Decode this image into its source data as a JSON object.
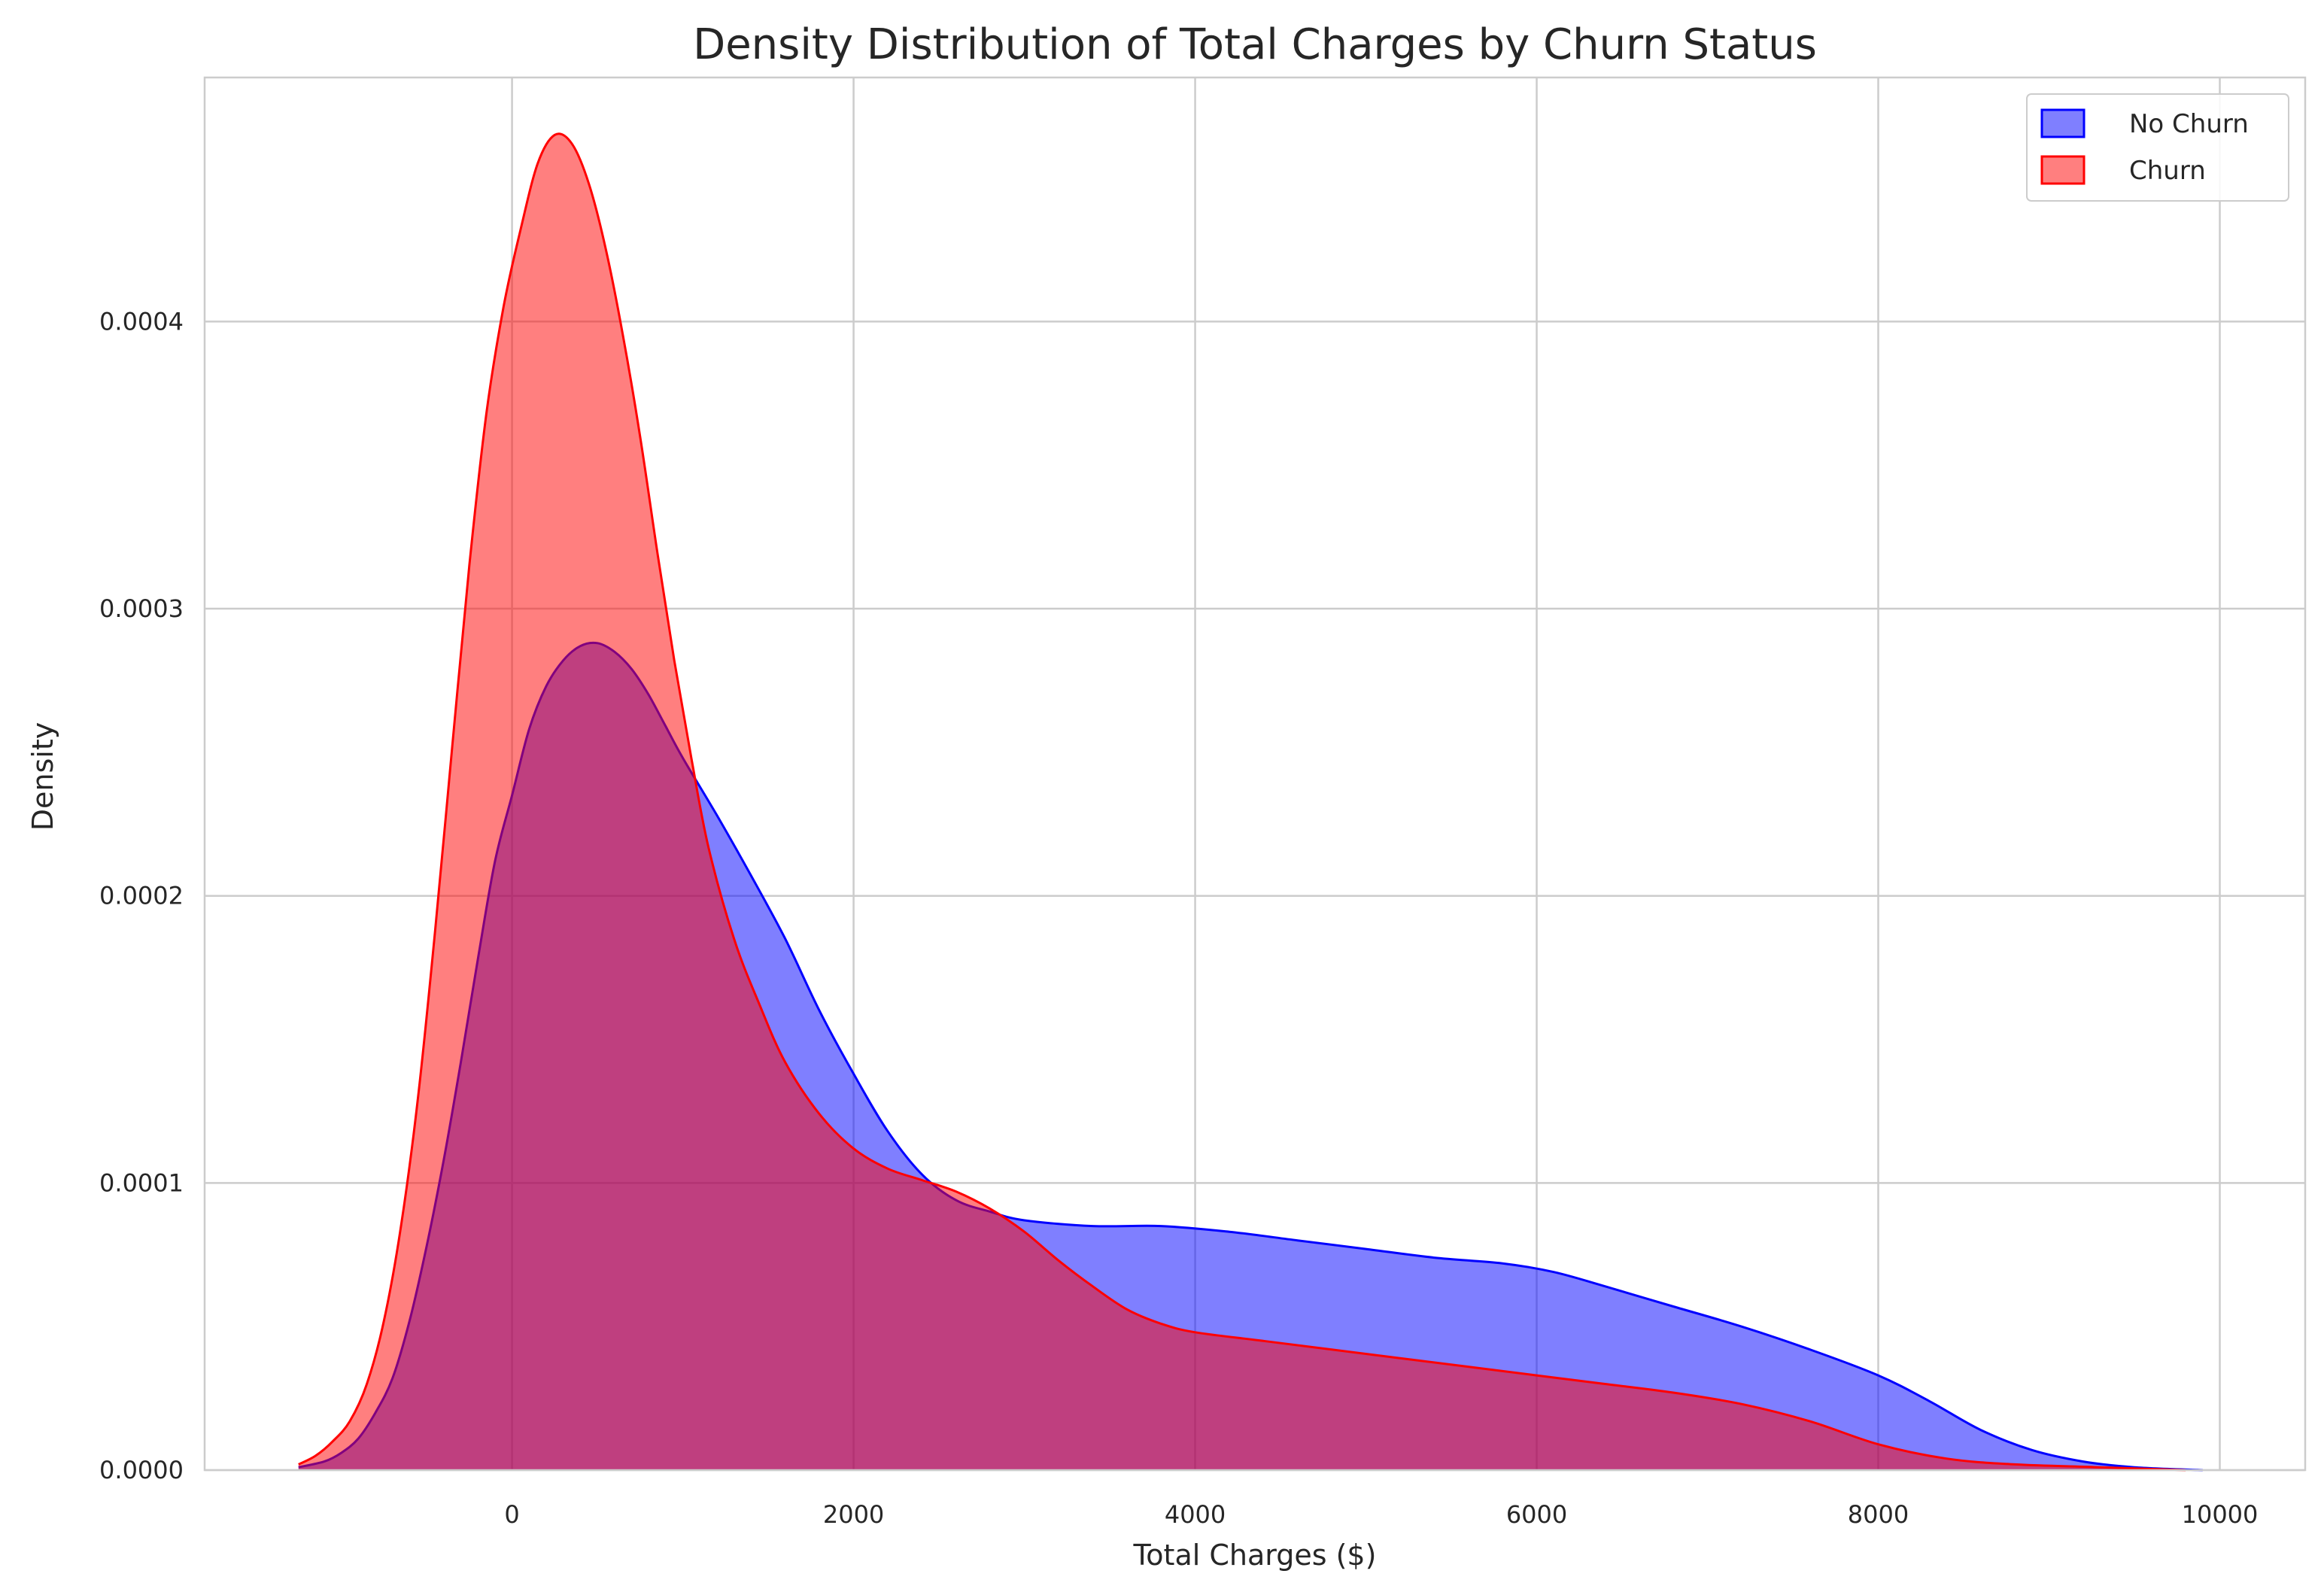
{
  "chart_data": {
    "type": "area",
    "title": "Density Distribution of Total Charges by Churn Status",
    "xlabel": "Total Charges ($)",
    "ylabel": "Density",
    "xlim": [
      -1800,
      10500
    ],
    "ylim": [
      0,
      0.000485
    ],
    "xticks": [
      0,
      2000,
      4000,
      6000,
      8000,
      10000
    ],
    "xtick_labels": [
      "0",
      "2000",
      "4000",
      "6000",
      "8000",
      "10000"
    ],
    "yticks": [
      0,
      0.0001,
      0.0002,
      0.0003,
      0.0004
    ],
    "ytick_labels": [
      "0.0000",
      "0.0001",
      "0.0002",
      "0.0003",
      "0.0004"
    ],
    "grid": true,
    "legend": "top-right",
    "series": [
      {
        "name": "No Churn",
        "color": "#0000ff",
        "fill_opacity": 0.5,
        "points": [
          [
            -1250,
            1e-06
          ],
          [
            -1100,
            3e-06
          ],
          [
            -1000,
            6e-06
          ],
          [
            -900,
            1.1e-05
          ],
          [
            -800,
            2e-05
          ],
          [
            -700,
            3.2e-05
          ],
          [
            -600,
            5.2e-05
          ],
          [
            -500,
            7.8e-05
          ],
          [
            -400,
            0.000108
          ],
          [
            -300,
            0.000142
          ],
          [
            -200,
            0.000178
          ],
          [
            -100,
            0.000212
          ],
          [
            0,
            0.000235
          ],
          [
            100,
            0.000258
          ],
          [
            200,
            0.000273
          ],
          [
            300,
            0.000282
          ],
          [
            400,
            0.000287
          ],
          [
            500,
            0.000288
          ],
          [
            600,
            0.000285
          ],
          [
            700,
            0.000279
          ],
          [
            800,
            0.00027
          ],
          [
            900,
            0.000259
          ],
          [
            1000,
            0.000248
          ],
          [
            1200,
            0.000228
          ],
          [
            1400,
            0.000207
          ],
          [
            1600,
            0.000185
          ],
          [
            1800,
            0.00016
          ],
          [
            2000,
            0.000138
          ],
          [
            2200,
            0.000118
          ],
          [
            2400,
            0.000103
          ],
          [
            2600,
            9.4e-05
          ],
          [
            2800,
            9e-05
          ],
          [
            3000,
            8.7e-05
          ],
          [
            3400,
            8.5e-05
          ],
          [
            3800,
            8.5e-05
          ],
          [
            4200,
            8.3e-05
          ],
          [
            4600,
            8e-05
          ],
          [
            5000,
            7.7e-05
          ],
          [
            5400,
            7.4e-05
          ],
          [
            5800,
            7.2e-05
          ],
          [
            6100,
            6.9e-05
          ],
          [
            6400,
            6.4e-05
          ],
          [
            6800,
            5.7e-05
          ],
          [
            7200,
            5e-05
          ],
          [
            7600,
            4.2e-05
          ],
          [
            8000,
            3.3e-05
          ],
          [
            8300,
            2.4e-05
          ],
          [
            8600,
            1.4e-05
          ],
          [
            8900,
            7e-06
          ],
          [
            9200,
            3e-06
          ],
          [
            9500,
            1e-06
          ],
          [
            9900,
            0.0
          ]
        ]
      },
      {
        "name": "Churn",
        "color": "#ff0000",
        "fill_opacity": 0.5,
        "points": [
          [
            -1250,
            2e-06
          ],
          [
            -1150,
            5e-06
          ],
          [
            -1050,
            1e-05
          ],
          [
            -950,
            1.7e-05
          ],
          [
            -850,
            3e-05
          ],
          [
            -750,
            5.2e-05
          ],
          [
            -650,
            8.5e-05
          ],
          [
            -550,
            0.00013
          ],
          [
            -450,
            0.000188
          ],
          [
            -350,
            0.000252
          ],
          [
            -250,
            0.000315
          ],
          [
            -150,
            0.000368
          ],
          [
            -50,
            0.000405
          ],
          [
            50,
            0.000432
          ],
          [
            150,
            0.000455
          ],
          [
            250,
            0.000465
          ],
          [
            350,
            0.000462
          ],
          [
            450,
            0.000448
          ],
          [
            550,
            0.000425
          ],
          [
            650,
            0.000395
          ],
          [
            750,
            0.00036
          ],
          [
            850,
            0.00032
          ],
          [
            950,
            0.000282
          ],
          [
            1050,
            0.000248
          ],
          [
            1150,
            0.000217
          ],
          [
            1300,
            0.000185
          ],
          [
            1450,
            0.000162
          ],
          [
            1600,
            0.000142
          ],
          [
            1800,
            0.000124
          ],
          [
            2000,
            0.000112
          ],
          [
            2200,
            0.000105
          ],
          [
            2400,
            0.000101
          ],
          [
            2600,
            9.7e-05
          ],
          [
            2800,
            9.1e-05
          ],
          [
            3000,
            8.3e-05
          ],
          [
            3200,
            7.3e-05
          ],
          [
            3400,
            6.4e-05
          ],
          [
            3600,
            5.6e-05
          ],
          [
            3800,
            5.1e-05
          ],
          [
            4000,
            4.8e-05
          ],
          [
            4400,
            4.5e-05
          ],
          [
            4800,
            4.2e-05
          ],
          [
            5200,
            3.9e-05
          ],
          [
            5600,
            3.6e-05
          ],
          [
            6000,
            3.3e-05
          ],
          [
            6400,
            3e-05
          ],
          [
            6800,
            2.7e-05
          ],
          [
            7200,
            2.3e-05
          ],
          [
            7600,
            1.7e-05
          ],
          [
            8000,
            9e-06
          ],
          [
            8400,
            4e-06
          ],
          [
            8800,
            2e-06
          ],
          [
            9300,
            1e-06
          ],
          [
            9800,
            0.0
          ]
        ]
      }
    ]
  }
}
